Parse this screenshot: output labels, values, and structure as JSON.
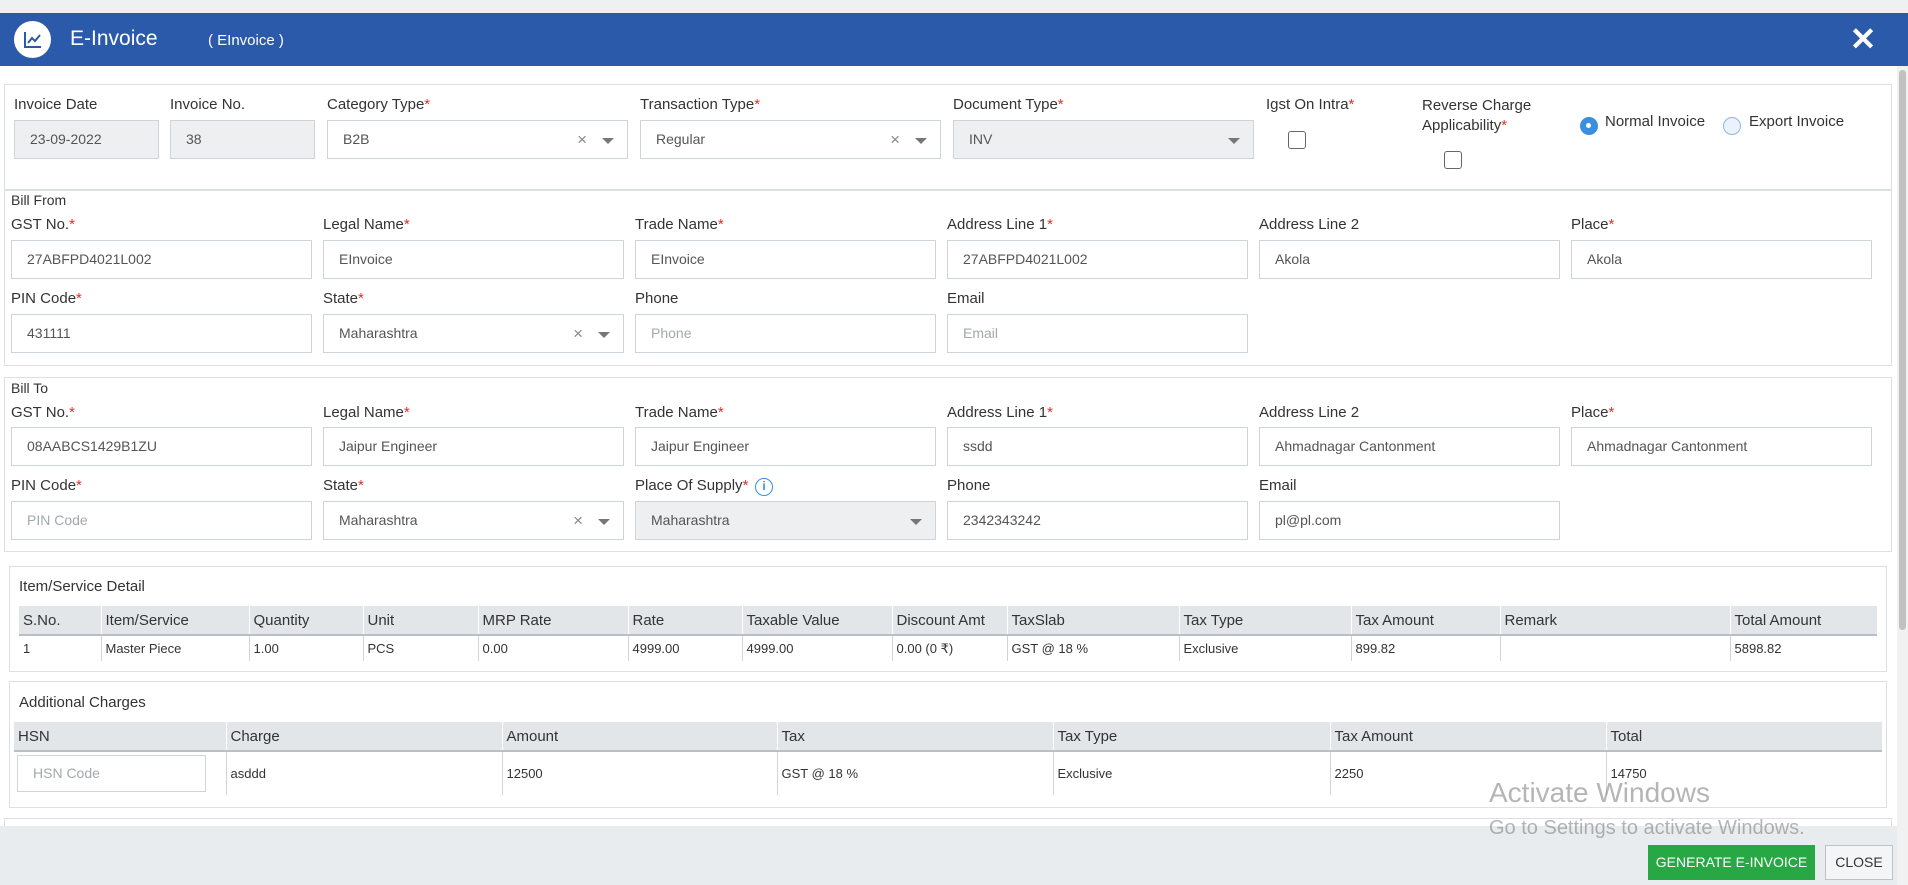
{
  "header": {
    "title": "E-Invoice",
    "subtitle": "( EInvoice )",
    "close_icon": "close-icon",
    "bg_color": "#2b5aab"
  },
  "invoice": {
    "date_label": "Invoice Date",
    "date_value": "23-09-2022",
    "no_label": "Invoice No.",
    "no_value": "38",
    "category_label": "Category Type",
    "category_value": "B2B",
    "transaction_label": "Transaction Type",
    "transaction_value": "Regular",
    "document_label": "Document Type",
    "document_value": "INV",
    "igst_label": "Igst On Intra",
    "reverse_label_1": "Reverse Charge",
    "reverse_label_2": "Applicability",
    "radio_normal": "Normal Invoice",
    "radio_export": "Export Invoice",
    "required_mark": "*"
  },
  "bill_from": {
    "section_title": "Bill From",
    "gst_label": "GST No.",
    "gst_value": "27ABFPD4021L002",
    "legal_label": "Legal Name",
    "legal_value": "EInvoice",
    "trade_label": "Trade Name",
    "trade_value": "EInvoice",
    "addr1_label": "Address Line 1",
    "addr1_value": "27ABFPD4021L002",
    "addr2_label": "Address Line 2",
    "addr2_value": "Akola",
    "place_label": "Place",
    "place_value": "Akola",
    "pin_label": "PIN Code",
    "pin_value": "431111",
    "state_label": "State",
    "state_value": "Maharashtra",
    "phone_label": "Phone",
    "phone_placeholder": "Phone",
    "email_label": "Email",
    "email_placeholder": "Email"
  },
  "bill_to": {
    "section_title": "Bill To",
    "gst_label": "GST No.",
    "gst_value": "08AABCS1429B1ZU",
    "legal_label": "Legal Name",
    "legal_value": "Jaipur Engineer",
    "trade_label": "Trade Name",
    "trade_value": "Jaipur Engineer",
    "addr1_label": "Address Line 1",
    "addr1_value": "ssdd",
    "addr2_label": "Address Line 2",
    "addr2_value": "Ahmadnagar Cantonment",
    "place_label": "Place",
    "place_value": "Ahmadnagar Cantonment",
    "pin_label": "PIN Code",
    "pin_placeholder": "PIN Code",
    "state_label": "State",
    "state_value": "Maharashtra",
    "supply_label": "Place Of Supply",
    "supply_value": "Maharashtra",
    "phone_label": "Phone",
    "phone_value": "2342343242",
    "email_label": "Email",
    "email_value": "pl@pl.com"
  },
  "items": {
    "section_title": "Item/Service Detail",
    "columns": [
      "S.No.",
      "Item/Service",
      "Quantity",
      "Unit",
      "MRP Rate",
      "Rate",
      "Taxable Value",
      "Discount Amt",
      "TaxSlab",
      "Tax Type",
      "Tax Amount",
      "Remark",
      "Total Amount"
    ],
    "rows": [
      [
        "1",
        "Master Piece",
        "1.00",
        "PCS",
        "0.00",
        "4999.00",
        "4999.00",
        "0.00 (0 ₹)",
        "GST @ 18 %",
        "Exclusive",
        "899.82",
        "",
        "5898.82"
      ]
    ]
  },
  "charges": {
    "section_title": "Additional Charges",
    "columns": [
      "HSN",
      "Charge",
      "Amount",
      "Tax",
      "Tax Type",
      "Tax Amount",
      "Total"
    ],
    "hsn_placeholder": "HSN Code",
    "row": [
      "asddd",
      "12500",
      "GST @ 18 %",
      "Exclusive",
      "2250",
      "14750"
    ]
  },
  "footer": {
    "generate_label": "GENERATE E-INVOICE",
    "close_label": "CLOSE",
    "generate_color": "#28a745"
  },
  "watermark": {
    "line1": "Activate Windows",
    "line2": "Go to Settings to activate Windows."
  }
}
